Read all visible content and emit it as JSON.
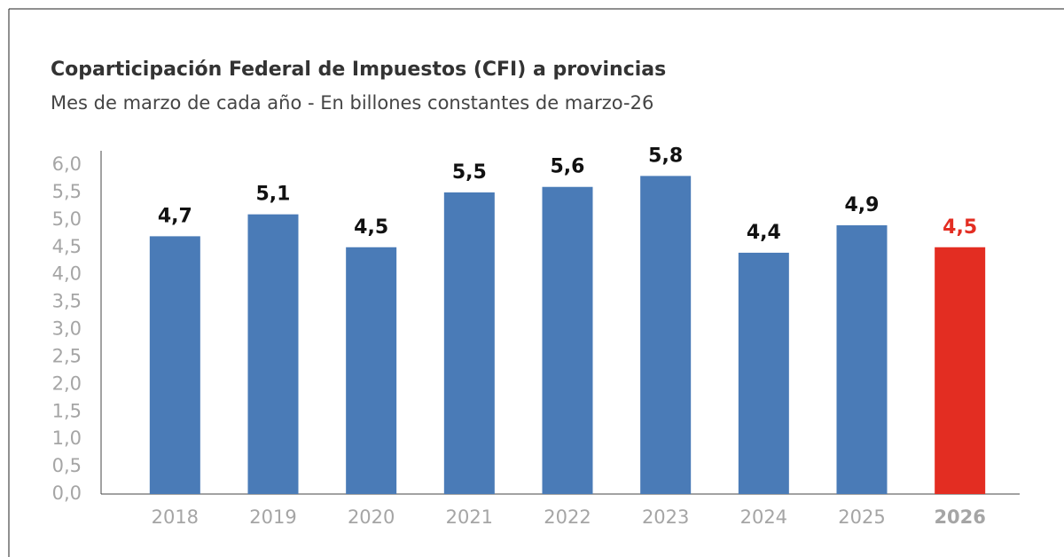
{
  "chart_data": {
    "type": "bar",
    "title": "Coparticipación Federal de Impuestos (CFI) a provincias",
    "subtitle": "Mes de marzo de cada año - En billones constantes de marzo-26",
    "categories": [
      "2018",
      "2019",
      "2020",
      "2021",
      "2022",
      "2023",
      "2024",
      "2025",
      "2026"
    ],
    "values": [
      4.7,
      5.1,
      4.5,
      5.5,
      5.6,
      5.8,
      4.4,
      4.9,
      4.5
    ],
    "value_labels": [
      "4,7",
      "5,1",
      "4,5",
      "5,5",
      "5,6",
      "5,8",
      "4,4",
      "4,9",
      "4,5"
    ],
    "color": "#4a7bb7",
    "colors": [
      "#4a7bb7",
      "#4a7bb7",
      "#4a7bb7",
      "#4a7bb7",
      "#4a7bb7",
      "#4a7bb7",
      "#4a7bb7",
      "#4a7bb7",
      "#e32d22"
    ],
    "ylim": [
      0,
      6
    ],
    "yticks": [
      {
        "value": 0,
        "label": "0,0"
      },
      {
        "value": 0.5,
        "label": "0,5"
      },
      {
        "value": 1,
        "label": "1,0"
      },
      {
        "value": 1.5,
        "label": "1,5"
      },
      {
        "value": 2,
        "label": "2,0"
      },
      {
        "value": 2.5,
        "label": "2,5"
      },
      {
        "value": 3,
        "label": "3,0"
      },
      {
        "value": 3.5,
        "label": "3,5"
      },
      {
        "value": 4,
        "label": "4,0"
      },
      {
        "value": 4.5,
        "label": "4,5"
      },
      {
        "value": 5,
        "label": "5,0"
      },
      {
        "value": 5.5,
        "label": "5,5"
      },
      {
        "value": 6,
        "label": "6,0"
      }
    ],
    "grid": false
  }
}
